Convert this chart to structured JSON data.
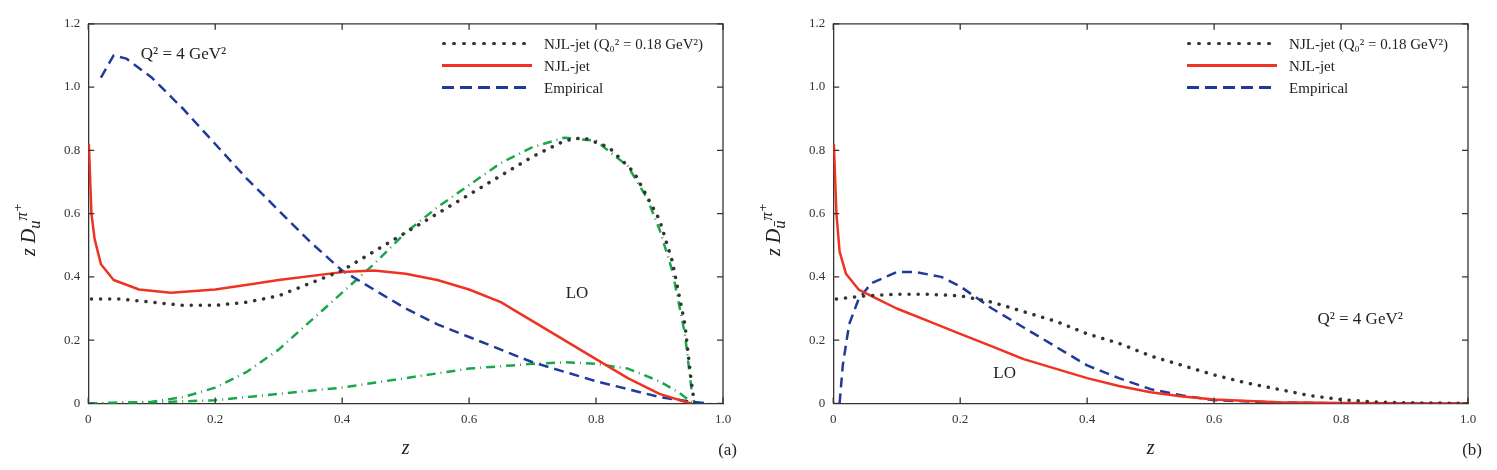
{
  "chart_data": [
    {
      "type": "line",
      "xlabel": "z",
      "ylabel": "z D$_{u}$$^{π⁺}$",
      "xlim": [
        0,
        1
      ],
      "ylim": [
        0,
        1.2
      ],
      "xticks": [
        0,
        0.2,
        0.4,
        0.6,
        0.8,
        {
          "value": 1,
          "label": "1.0"
        }
      ],
      "yticks": [
        0,
        0.2,
        0.4,
        0.6,
        0.8,
        {
          "value": 1,
          "label": "1.0"
        },
        1.2
      ],
      "grid": false,
      "legend": "top right",
      "series": [
        {
          "name": "NJL-jet (Q₀² = 0.18 GeV²)",
          "color": "#333333",
          "line_style": "dotted",
          "x": [
            0.005,
            0.05,
            0.1,
            0.15,
            0.2,
            0.25,
            0.3,
            0.35,
            0.4,
            0.45,
            0.5,
            0.55,
            0.6,
            0.65,
            0.7,
            0.75,
            0.78,
            0.82,
            0.86,
            0.9,
            0.92,
            0.94,
            0.95,
            0.955
          ],
          "values": [
            0.33,
            0.33,
            0.32,
            0.31,
            0.31,
            0.32,
            0.34,
            0.38,
            0.42,
            0.48,
            0.54,
            0.6,
            0.66,
            0.72,
            0.78,
            0.83,
            0.84,
            0.81,
            0.73,
            0.58,
            0.45,
            0.25,
            0.07,
            0
          ]
        },
        {
          "name": "NJL-jet",
          "color": "#ee3322",
          "line_style": "solid",
          "x": [
            0.001,
            0.005,
            0.01,
            0.02,
            0.04,
            0.08,
            0.13,
            0.2,
            0.3,
            0.4,
            0.45,
            0.5,
            0.55,
            0.6,
            0.65,
            0.7,
            0.75,
            0.8,
            0.85,
            0.9,
            0.94,
            0.95
          ],
          "values": [
            0.82,
            0.6,
            0.52,
            0.44,
            0.39,
            0.36,
            0.35,
            0.36,
            0.39,
            0.415,
            0.42,
            0.41,
            0.39,
            0.36,
            0.32,
            0.26,
            0.2,
            0.14,
            0.08,
            0.03,
            0.005,
            0
          ]
        },
        {
          "name": "Empirical",
          "color": "#1f3a9a",
          "line_style": "dashed",
          "x": [
            0.02,
            0.04,
            0.06,
            0.1,
            0.15,
            0.2,
            0.25,
            0.3,
            0.35,
            0.4,
            0.45,
            0.5,
            0.55,
            0.6,
            0.65,
            0.7,
            0.75,
            0.8,
            0.85,
            0.9,
            0.95,
            0.98
          ],
          "values": [
            1.03,
            1.1,
            1.09,
            1.03,
            0.93,
            0.82,
            0.71,
            0.61,
            0.51,
            0.42,
            0.36,
            0.3,
            0.25,
            0.21,
            0.17,
            0.13,
            0.1,
            0.07,
            0.045,
            0.02,
            0.005,
            0
          ]
        },
        {
          "color": "#1aa64a",
          "line_style": "dashdot",
          "x": [
            0,
            0.1,
            0.15,
            0.2,
            0.25,
            0.3,
            0.35,
            0.4,
            0.45,
            0.5,
            0.55,
            0.6,
            0.65,
            0.7,
            0.75,
            0.8,
            0.85,
            0.88,
            0.9,
            0.92,
            0.94,
            0.95,
            0.955
          ],
          "values": [
            0,
            0.005,
            0.02,
            0.05,
            0.1,
            0.17,
            0.26,
            0.35,
            0.44,
            0.54,
            0.62,
            0.69,
            0.76,
            0.81,
            0.84,
            0.83,
            0.75,
            0.65,
            0.55,
            0.42,
            0.22,
            0.05,
            0
          ]
        },
        {
          "color": "#1aa64a",
          "line_style": "dashdot",
          "x": [
            0,
            0.1,
            0.2,
            0.3,
            0.4,
            0.5,
            0.6,
            0.7,
            0.75,
            0.8,
            0.85,
            0.9,
            0.93,
            0.95,
            0.96
          ],
          "values": [
            0,
            0.003,
            0.01,
            0.03,
            0.05,
            0.08,
            0.11,
            0.125,
            0.13,
            0.125,
            0.11,
            0.07,
            0.035,
            0.005,
            0
          ]
        }
      ],
      "annotations": [
        "Q² = 4 GeV²",
        "LO",
        "(a)"
      ]
    },
    {
      "type": "line",
      "xlabel": "z",
      "ylabel": "z D$_{ū}$$^{π⁺}$",
      "xlim": [
        0,
        1
      ],
      "ylim": [
        0,
        1.2
      ],
      "xticks": [
        0,
        0.2,
        0.4,
        0.6,
        0.8,
        {
          "value": 1,
          "label": "1.0"
        }
      ],
      "yticks": [
        0,
        0.2,
        0.4,
        0.6,
        0.8,
        {
          "value": 1,
          "label": "1.0"
        },
        1.2
      ],
      "grid": false,
      "legend": "top right",
      "series": [
        {
          "name": "NJL-jet (Q₀² = 0.18 GeV²)",
          "color": "#333333",
          "line_style": "dotted",
          "x": [
            0.005,
            0.05,
            0.1,
            0.15,
            0.2,
            0.25,
            0.3,
            0.35,
            0.4,
            0.45,
            0.5,
            0.55,
            0.6,
            0.65,
            0.7,
            0.75,
            0.8,
            0.85,
            0.9,
            1
          ],
          "values": [
            0.33,
            0.34,
            0.345,
            0.345,
            0.34,
            0.32,
            0.29,
            0.26,
            0.22,
            0.19,
            0.15,
            0.12,
            0.09,
            0.065,
            0.045,
            0.025,
            0.012,
            0.005,
            0.002,
            0
          ]
        },
        {
          "name": "NJL-jet",
          "color": "#ee3322",
          "line_style": "solid",
          "x": [
            0.001,
            0.005,
            0.01,
            0.02,
            0.04,
            0.07,
            0.1,
            0.15,
            0.2,
            0.25,
            0.3,
            0.35,
            0.4,
            0.45,
            0.5,
            0.55,
            0.6,
            0.7,
            0.8,
            1
          ],
          "values": [
            0.82,
            0.6,
            0.48,
            0.41,
            0.36,
            0.33,
            0.3,
            0.26,
            0.22,
            0.18,
            0.14,
            0.11,
            0.08,
            0.055,
            0.035,
            0.022,
            0.012,
            0.004,
            0.001,
            0
          ]
        },
        {
          "name": "Empirical",
          "color": "#1f3a9a",
          "line_style": "dashed",
          "x": [
            0.01,
            0.015,
            0.025,
            0.04,
            0.06,
            0.1,
            0.13,
            0.17,
            0.2,
            0.25,
            0.3,
            0.35,
            0.4,
            0.45,
            0.5,
            0.55,
            0.6,
            0.7,
            0.8,
            1
          ],
          "values": [
            0,
            0.12,
            0.25,
            0.33,
            0.38,
            0.415,
            0.415,
            0.4,
            0.37,
            0.3,
            0.24,
            0.18,
            0.12,
            0.08,
            0.045,
            0.025,
            0.01,
            0.003,
            0,
            0
          ]
        }
      ],
      "annotations": [
        "Q² = 4 GeV²",
        "LO",
        "(b)"
      ]
    }
  ]
}
